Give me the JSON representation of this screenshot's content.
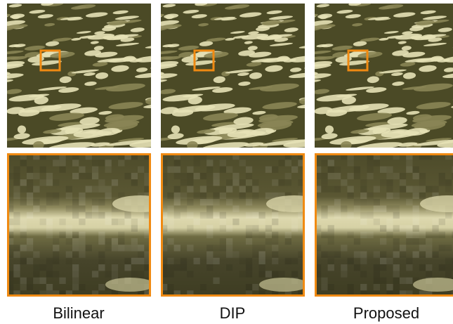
{
  "columns": [
    {
      "label": "Bilinear"
    },
    {
      "label": "DIP"
    },
    {
      "label": "Proposed"
    }
  ]
}
